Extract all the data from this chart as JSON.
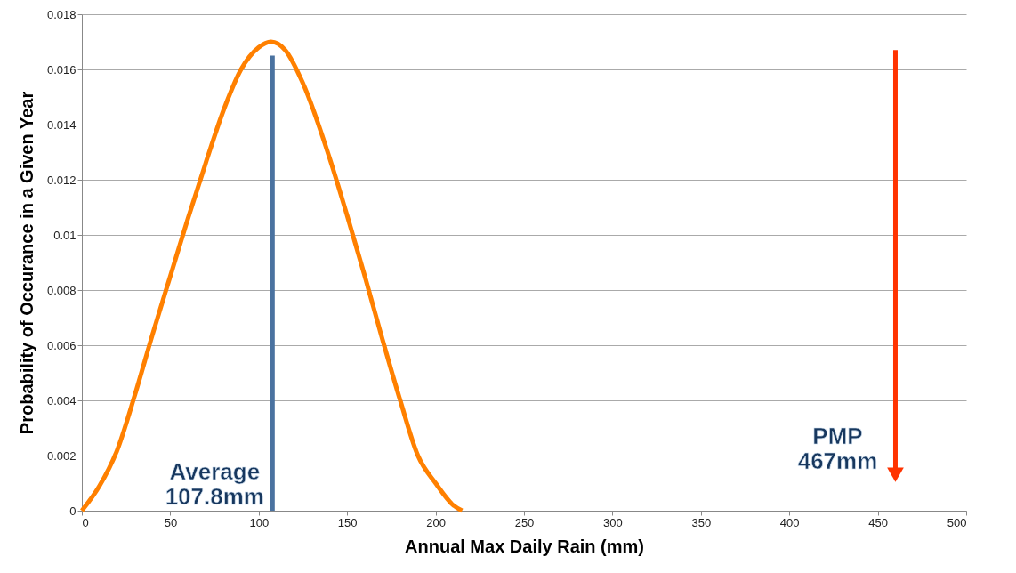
{
  "chart_data": {
    "type": "line",
    "xlabel": "Annual Max Daily Rain (mm)",
    "ylabel": "Probability of Occurance in a Given Year",
    "xlim": [
      0,
      500
    ],
    "xticks": [
      0,
      50,
      100,
      150,
      200,
      250,
      300,
      350,
      400,
      450,
      500
    ],
    "ylim": [
      0,
      0.018
    ],
    "yticks": [
      0,
      0.002,
      0.004,
      0.006,
      0.008,
      0.01,
      0.012,
      0.014,
      0.016,
      0.018
    ],
    "grid": "y",
    "legend": false,
    "marker": "none",
    "line_style": "solid",
    "series": [
      {
        "color": "#ff8000",
        "x": [
          0,
          10,
          20,
          30,
          40,
          50,
          60,
          70,
          80,
          90,
          100,
          107,
          115,
          125,
          140,
          150,
          160,
          170,
          180,
          190,
          200,
          210,
          215
        ],
        "values": [
          0,
          0.0009,
          0.0022,
          0.0042,
          0.0064,
          0.0085,
          0.0106,
          0.0126,
          0.0145,
          0.016,
          0.0168,
          0.017,
          0.0167,
          0.0155,
          0.0128,
          0.0107,
          0.0085,
          0.0062,
          0.004,
          0.002,
          0.001,
          0.0002,
          0
        ]
      },
      {
        "color": "#4a72a0",
        "x": [
          107.8,
          107.8
        ],
        "values": [
          0,
          0.0165
        ]
      },
      {
        "color": "#ff3300",
        "x": [
          460,
          460
        ],
        "values": [
          0.0167,
          0.0013
        ],
        "marker": "triangle"
      }
    ],
    "annotations": [
      "Average\n107.8mm",
      "PMP\n467mm"
    ]
  }
}
